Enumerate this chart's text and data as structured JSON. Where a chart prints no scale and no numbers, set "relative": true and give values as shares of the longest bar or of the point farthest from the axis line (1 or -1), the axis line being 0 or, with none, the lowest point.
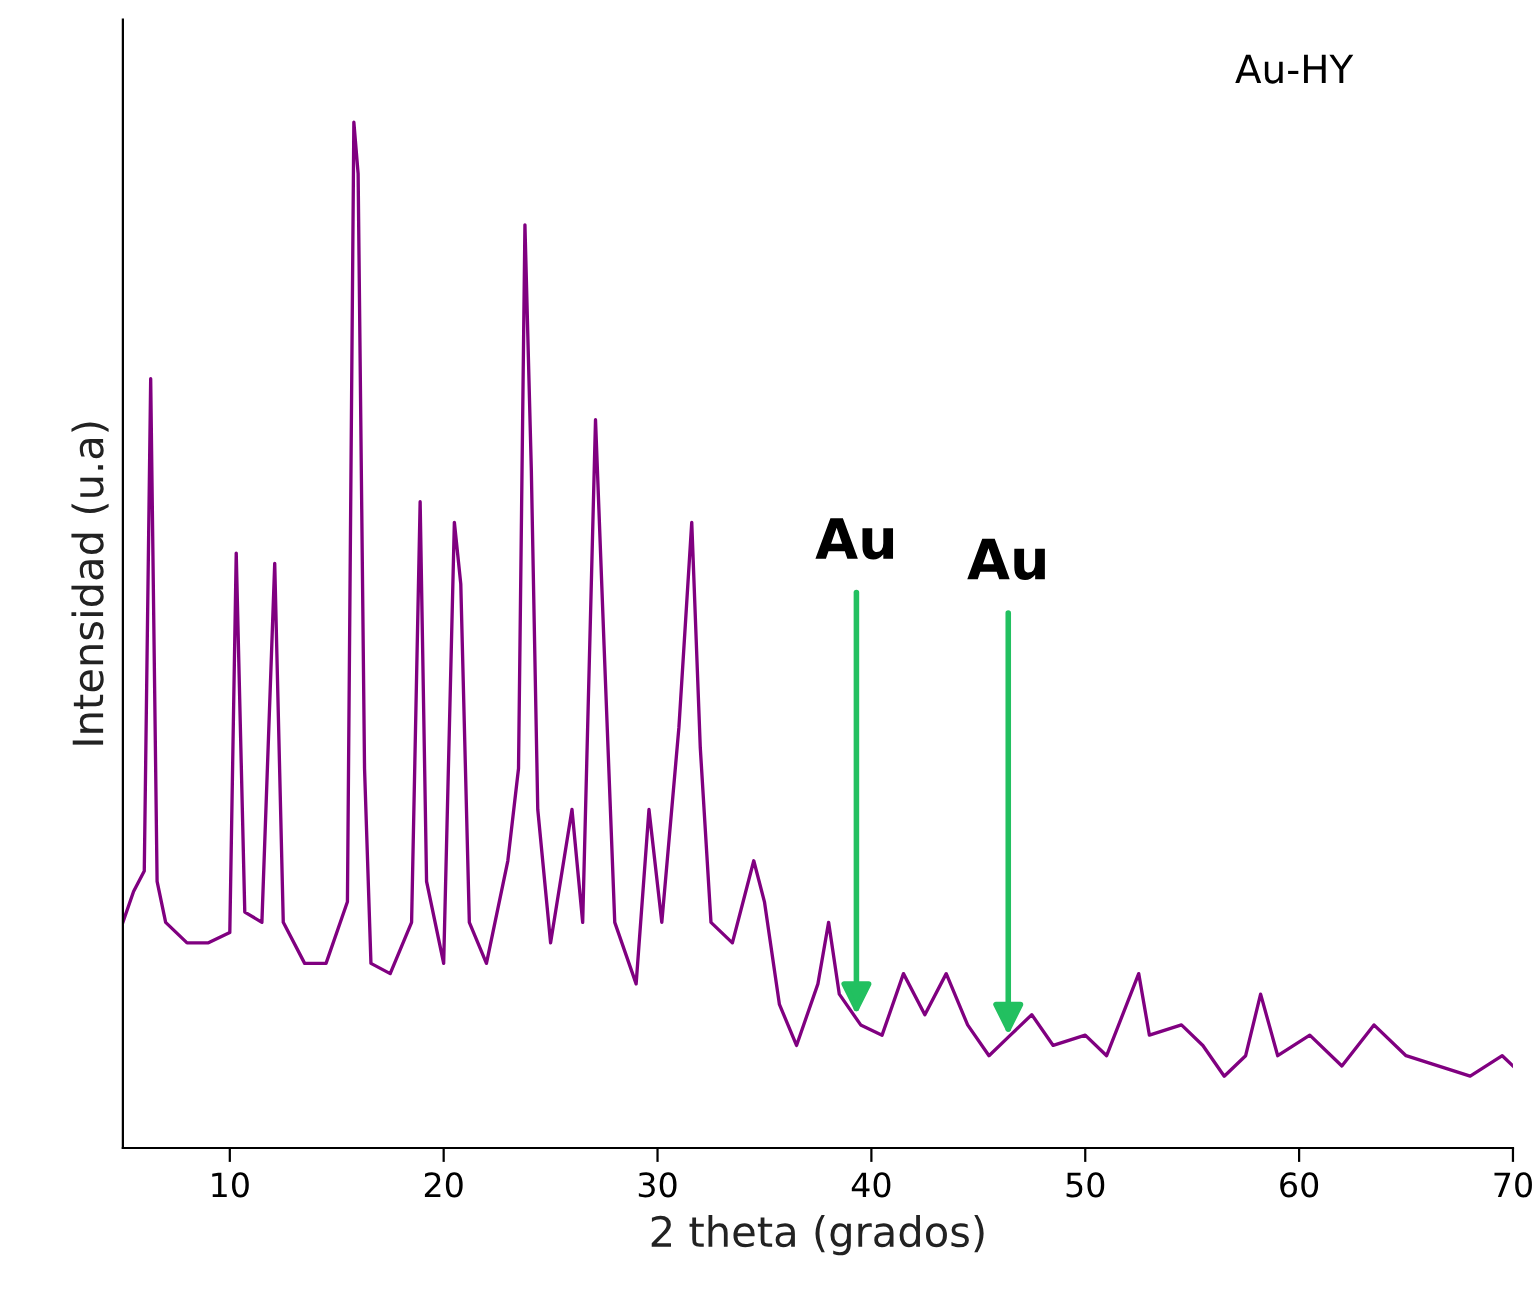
{
  "chart_data": {
    "type": "line",
    "relative": true,
    "xlabel": "2 theta (grados)",
    "ylabel": "Intensidad (u.a)",
    "xlim": [
      5,
      70
    ],
    "xticks": [
      10,
      20,
      30,
      40,
      50,
      60,
      70
    ],
    "grid": false,
    "legend": false,
    "annotations": [
      "Au-HY",
      {
        "text": "Au",
        "x": 39.3,
        "y": 0.13
      },
      {
        "text": "Au",
        "x": 46.4,
        "y": 0.11
      }
    ],
    "series": [
      {
        "color": "#800080",
        "x": [
          5.0,
          5.5,
          6.0,
          6.3,
          6.6,
          7.0,
          8.0,
          9.0,
          10.0,
          10.3,
          10.7,
          11.5,
          12.1,
          12.5,
          13.5,
          14.5,
          15.5,
          15.8,
          16.0,
          16.3,
          16.6,
          17.5,
          18.5,
          18.9,
          19.2,
          20.0,
          20.5,
          20.8,
          21.2,
          22.0,
          23.0,
          23.5,
          23.8,
          24.1,
          24.4,
          25.0,
          26.0,
          26.5,
          27.1,
          27.5,
          28.0,
          29.0,
          29.6,
          30.2,
          31.0,
          31.6,
          32.0,
          32.5,
          33.5,
          34.5,
          35.0,
          35.7,
          36.5,
          37.5,
          38.0,
          38.5,
          39.5,
          40.5,
          41.5,
          42.5,
          43.5,
          44.5,
          45.5,
          46.5,
          47.5,
          48.5,
          50.0,
          51.0,
          52.5,
          53.0,
          54.5,
          55.5,
          56.5,
          57.5,
          58.2,
          59.0,
          60.5,
          62.0,
          63.5,
          65.0,
          66.5,
          68.0,
          69.5,
          70.0
        ],
        "values": [
          0.22,
          0.25,
          0.27,
          0.75,
          0.26,
          0.22,
          0.2,
          0.2,
          0.21,
          0.58,
          0.23,
          0.22,
          0.57,
          0.22,
          0.18,
          0.18,
          0.24,
          1.0,
          0.95,
          0.37,
          0.18,
          0.17,
          0.22,
          0.63,
          0.26,
          0.18,
          0.61,
          0.55,
          0.22,
          0.18,
          0.28,
          0.37,
          0.9,
          0.66,
          0.33,
          0.2,
          0.33,
          0.22,
          0.71,
          0.49,
          0.22,
          0.16,
          0.33,
          0.22,
          0.41,
          0.61,
          0.39,
          0.22,
          0.2,
          0.28,
          0.24,
          0.14,
          0.1,
          0.16,
          0.22,
          0.15,
          0.12,
          0.11,
          0.17,
          0.13,
          0.17,
          0.12,
          0.09,
          0.11,
          0.13,
          0.1,
          0.11,
          0.09,
          0.17,
          0.11,
          0.12,
          0.1,
          0.07,
          0.09,
          0.15,
          0.09,
          0.11,
          0.08,
          0.12,
          0.09,
          0.08,
          0.07,
          0.09,
          0.08
        ]
      }
    ]
  }
}
